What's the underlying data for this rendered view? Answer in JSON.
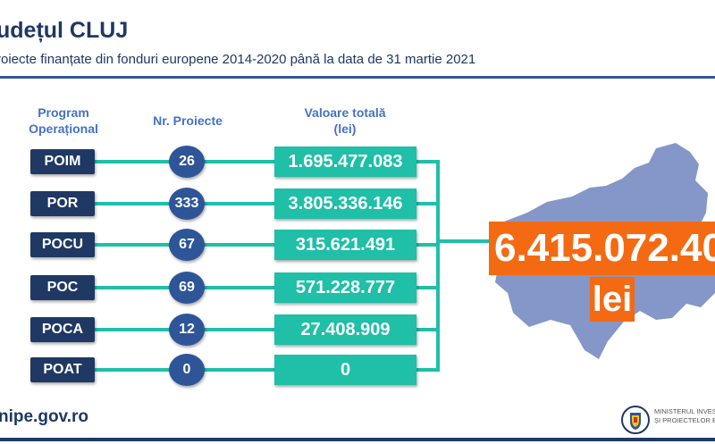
{
  "header": {
    "title": "udețul CLUJ",
    "subtitle": "roiecte finanțate din fonduri europene 2014-2020 până la data de 31 martie 2021"
  },
  "columns": {
    "program_line1": "Program",
    "program_line2": "Operațional",
    "projects": "Nr. Proiecte",
    "value_line1": "Valoare totală",
    "value_line2": "(lei)"
  },
  "rows": [
    {
      "program": "POIM",
      "projects": "26",
      "value": "1.695.477.083"
    },
    {
      "program": "POR",
      "projects": "333",
      "value": "3.805.336.146"
    },
    {
      "program": "POCU",
      "projects": "67",
      "value": "315.621.491"
    },
    {
      "program": "POC",
      "projects": "69",
      "value": "571.228.777"
    },
    {
      "program": "POCA",
      "projects": "12",
      "value": "27.408.909"
    },
    {
      "program": "POAT",
      "projects": "0",
      "value": "0"
    }
  ],
  "total": {
    "value": "6.415.072.40",
    "unit": "lei"
  },
  "footer": {
    "website": "nipe.gov.ro",
    "ministry_line1": "MINISTERUL INVESTIȚII",
    "ministry_line2": "ȘI PROIECTELOR EURO"
  },
  "colors": {
    "navy": "#1f3864",
    "teal": "#1fbfa8",
    "circle_blue": "#2e5597",
    "orange": "#f46a12",
    "map_blue": "#8497c8"
  }
}
